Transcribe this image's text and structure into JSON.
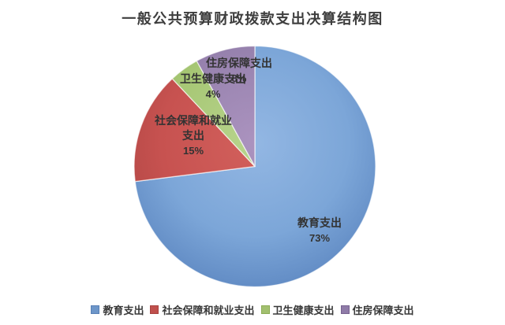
{
  "title": "一般公共预算财政拨款支出决算结构图",
  "chart_data": {
    "type": "pie",
    "title": "一般公共预算财政拨款支出决算结构图",
    "categories": [
      "教育支出",
      "社会保障和就业支出",
      "卫生健康支出",
      "住房保障支出"
    ],
    "values": [
      73,
      15,
      4,
      8
    ],
    "unit": "%",
    "start_angle_deg": 0,
    "direction": "clockwise",
    "legend_position": "bottom",
    "slice_colors": [
      {
        "light": "#93b7e3",
        "mid": "#7ca6d8",
        "dark": "#5d87c1"
      },
      {
        "light": "#d2605c",
        "mid": "#c75250",
        "dark": "#ae4543"
      },
      {
        "light": "#b8d48d",
        "mid": "#a7c775",
        "dark": "#8fb257"
      },
      {
        "light": "#ab93bf",
        "mid": "#9782ae",
        "dark": "#80699b"
      }
    ],
    "data_labels": [
      {
        "lines": [
          "教育支出",
          "73%"
        ]
      },
      {
        "lines": [
          "社会保障和就业",
          "支出",
          "15%"
        ]
      },
      {
        "lines": [
          "卫生健康支出",
          "4%"
        ]
      },
      {
        "lines": [
          "住房保障支出",
          "8%"
        ]
      }
    ]
  },
  "labels": {
    "education": {
      "name": "教育支出",
      "pct": "73%"
    },
    "social": {
      "name1": "社会保障和就业",
      "name2": "支出",
      "pct": "15%"
    },
    "health": {
      "name": "卫生健康支出",
      "pct": "4%"
    },
    "housing": {
      "name": "住房保障支出",
      "pct": "8%"
    }
  },
  "legend": {
    "items": [
      {
        "label": "教育支出",
        "color": "#6d96c9",
        "border": "#5880b5"
      },
      {
        "label": "社会保障和就业支出",
        "color": "#c0504d",
        "border": "#a84340"
      },
      {
        "label": "卫生健康支出",
        "color": "#a2c06f",
        "border": "#8cac55"
      },
      {
        "label": "住房保障支出",
        "color": "#8f7ba8",
        "border": "#77628f"
      }
    ]
  }
}
